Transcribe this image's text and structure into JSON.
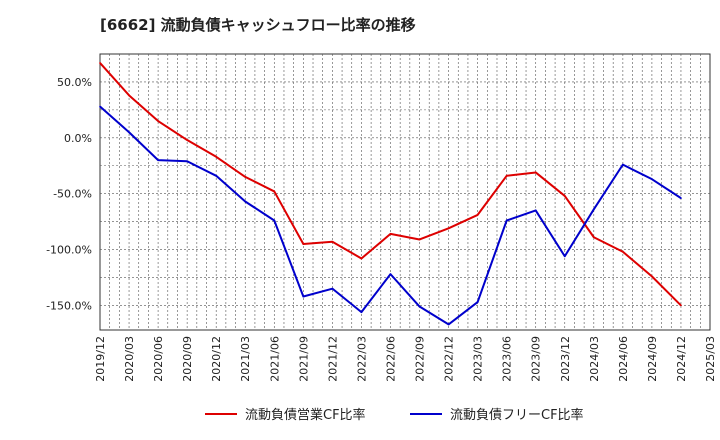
{
  "chart_data": {
    "type": "line",
    "title": "[6662]  流動負債キャッシュフロー比率の推移",
    "xlabel": "",
    "ylabel": "",
    "ylim": [
      -172,
      75
    ],
    "y_ticks": [
      {
        "v": 50,
        "label": "50.0%"
      },
      {
        "v": 0,
        "label": "0.0%"
      },
      {
        "v": -50,
        "label": "-50.0%"
      },
      {
        "v": -100,
        "label": "-100.0%"
      },
      {
        "v": -150,
        "label": "-150.0%"
      }
    ],
    "x_ticks": [
      "2019/12",
      "2020/03",
      "2020/06",
      "2020/09",
      "2020/12",
      "2021/03",
      "2021/06",
      "2021/09",
      "2021/12",
      "2022/03",
      "2022/06",
      "2022/09",
      "2022/12",
      "2023/03",
      "2023/06",
      "2023/09",
      "2023/12",
      "2024/03",
      "2024/06",
      "2024/09",
      "2024/12",
      "2025/03"
    ],
    "grid": true,
    "legend_position": "bottom",
    "x": [
      "2019/12",
      "2020/03",
      "2020/06",
      "2020/09",
      "2020/12",
      "2021/03",
      "2021/06",
      "2021/09",
      "2021/12",
      "2022/03",
      "2022/06",
      "2022/09",
      "2022/12",
      "2023/03",
      "2023/06",
      "2023/09",
      "2023/12",
      "2024/03",
      "2024/06",
      "2024/09",
      "2024/12"
    ],
    "series": [
      {
        "name": "流動負債営業CF比率",
        "color": "#dd0000",
        "values": [
          67,
          38,
          15,
          -2,
          -17,
          -35,
          -48,
          -95,
          -93,
          -108,
          -86,
          -91,
          -81,
          -69,
          -34,
          -31,
          -52,
          -89,
          -102,
          -124,
          -150
        ]
      },
      {
        "name": "流動負債フリーCF比率",
        "color": "#0000cc",
        "values": [
          28,
          5,
          -20,
          -21,
          -34,
          -57,
          -74,
          -142,
          -135,
          -156,
          -122,
          -151,
          -167,
          -147,
          -74,
          -65,
          -106,
          -64,
          -24,
          -37,
          -54
        ]
      }
    ]
  }
}
